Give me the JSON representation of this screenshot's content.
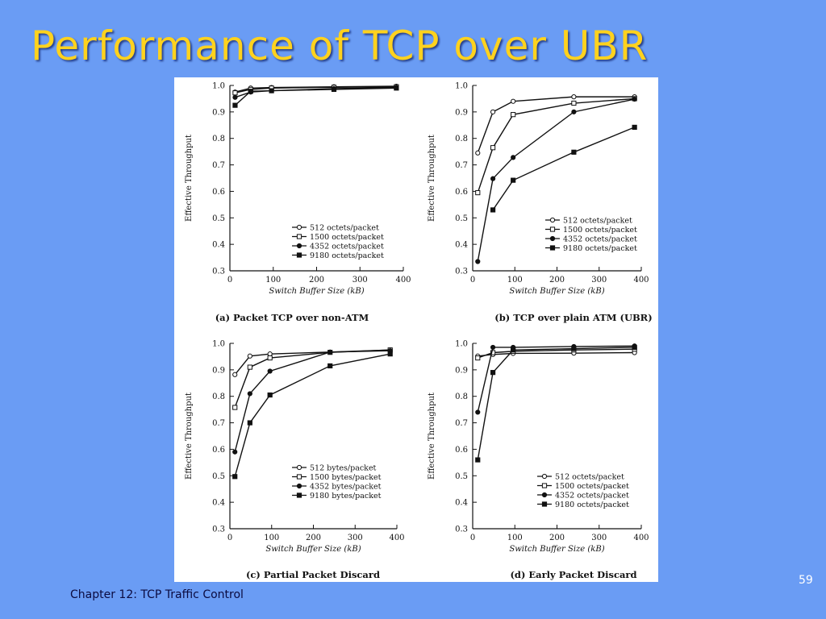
{
  "slide": {
    "title": "Performance of TCP over UBR",
    "footer": "Chapter 12:  TCP Traffic Control",
    "page_number": "59",
    "colors": {
      "background": "#6a9cf4",
      "title": "#ffd21e",
      "title_shadow": "#27408b",
      "footer": "#0b0b40"
    }
  },
  "chart_data": [
    {
      "type": "line",
      "caption": "(a) Packet TCP over non-ATM",
      "xlabel": "Switch Buffer Size (kB)",
      "ylabel": "Effective Throughput",
      "xlim": [
        0,
        400
      ],
      "ylim": [
        0.3,
        1.0
      ],
      "xticks": [
        "0",
        "100",
        "200",
        "300",
        "400"
      ],
      "yticks": [
        "0.3",
        "0.4",
        "0.5",
        "0.6",
        "0.7",
        "0.8",
        "0.9",
        "1.0"
      ],
      "grid": false,
      "legend_position": "bottom-right",
      "x": [
        12,
        48,
        96,
        240,
        384
      ],
      "series": [
        {
          "name": "512 octets/packet",
          "marker": "open-circle",
          "values": [
            0.975,
            0.99,
            0.992,
            0.995,
            0.997
          ]
        },
        {
          "name": "1500 octets/packet",
          "marker": "open-square",
          "values": [
            0.972,
            0.985,
            0.99,
            0.993,
            0.995
          ]
        },
        {
          "name": "4352 octets/packet",
          "marker": "filled-circle",
          "values": [
            0.955,
            0.975,
            0.98,
            0.988,
            0.992
          ]
        },
        {
          "name": "9180 octets/packet",
          "marker": "filled-square",
          "values": [
            0.925,
            0.978,
            0.98,
            0.985,
            0.99
          ]
        }
      ]
    },
    {
      "type": "line",
      "caption": "(b) TCP over plain ATM (UBR)",
      "xlabel": "Switch Buffer Size (kB)",
      "ylabel": "Effective Throughput",
      "xlim": [
        0,
        400
      ],
      "ylim": [
        0.3,
        1.0
      ],
      "xticks": [
        "0",
        "100",
        "200",
        "300",
        "400"
      ],
      "yticks": [
        "0.3",
        "0.4",
        "0.5",
        "0.6",
        "0.7",
        "0.8",
        "0.9",
        "1.0"
      ],
      "grid": false,
      "legend_position": "bottom-right",
      "x": [
        12,
        48,
        96,
        240,
        384
      ],
      "series": [
        {
          "name": "512 octets/packet",
          "marker": "open-circle",
          "values": [
            0.745,
            0.9,
            0.94,
            0.957,
            0.957
          ]
        },
        {
          "name": "1500 octets/packet",
          "marker": "open-square",
          "values": [
            0.595,
            0.765,
            0.89,
            0.933,
            0.95
          ]
        },
        {
          "name": "4352 octets/packet",
          "marker": "filled-circle",
          "values": [
            0.335,
            0.648,
            0.728,
            0.9,
            0.948
          ]
        },
        {
          "name": "9180 octets/packet",
          "marker": "filled-square",
          "values": [
            null,
            0.53,
            0.642,
            0.748,
            0.842
          ]
        }
      ]
    },
    {
      "type": "line",
      "caption": "(c) Partial Packet Discard",
      "xlabel": "Switch Buffer Size (kB)",
      "ylabel": "Effective Throughput",
      "xlim": [
        0,
        400
      ],
      "ylim": [
        0.3,
        1.0
      ],
      "xticks": [
        "0",
        "100",
        "200",
        "300",
        "400"
      ],
      "yticks": [
        "0.3",
        "0.4",
        "0.5",
        "0.6",
        "0.7",
        "0.8",
        "0.9",
        "1.0"
      ],
      "grid": false,
      "legend_position": "bottom-right",
      "x": [
        12,
        48,
        96,
        240,
        384
      ],
      "series": [
        {
          "name": "512 bytes/packet",
          "marker": "open-circle",
          "values": [
            0.882,
            0.952,
            0.96,
            0.967,
            0.975
          ]
        },
        {
          "name": "1500 bytes/packet",
          "marker": "open-square",
          "values": [
            0.758,
            0.91,
            0.945,
            0.966,
            0.975
          ]
        },
        {
          "name": "4352 bytes/packet",
          "marker": "filled-circle",
          "values": [
            0.59,
            0.81,
            0.895,
            0.967,
            0.972
          ]
        },
        {
          "name": "9180  bytes/packet",
          "marker": "filled-square",
          "values": [
            0.497,
            0.7,
            0.805,
            0.915,
            0.96
          ]
        }
      ]
    },
    {
      "type": "line",
      "caption": "(d) Early Packet Discard",
      "xlabel": "Switch Buffer Size (kB)",
      "ylabel": "Effective Throughput",
      "xlim": [
        0,
        400
      ],
      "ylim": [
        0.3,
        1.0
      ],
      "xticks": [
        "0",
        "100",
        "200",
        "300",
        "400"
      ],
      "yticks": [
        "0.3",
        "0.4",
        "0.5",
        "0.6",
        "0.7",
        "0.8",
        "0.9",
        "1.0"
      ],
      "grid": false,
      "legend_position": "bottom-right",
      "x": [
        12,
        48,
        96,
        240,
        384
      ],
      "series": [
        {
          "name": "512 octets/packet",
          "marker": "open-circle",
          "values": [
            0.952,
            0.958,
            0.962,
            0.963,
            0.965
          ]
        },
        {
          "name": "1500 octets/packet",
          "marker": "open-square",
          "values": [
            0.945,
            0.965,
            0.97,
            0.975,
            0.978
          ]
        },
        {
          "name": "4352 octets/packet",
          "marker": "filled-circle",
          "values": [
            0.74,
            0.985,
            0.985,
            0.988,
            0.99
          ]
        },
        {
          "name": "9180 octets/packet",
          "marker": "filled-square",
          "values": [
            0.56,
            0.89,
            0.975,
            0.98,
            0.985
          ]
        }
      ]
    }
  ]
}
